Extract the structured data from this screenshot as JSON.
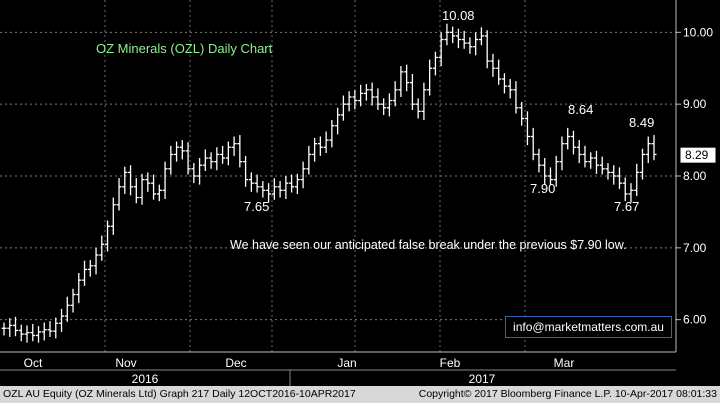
{
  "chart_data": {
    "type": "ohlc",
    "title": "OZ Minerals (OZL) Daily Chart",
    "annotation": "We have seen our anticipated false break under the previous $7.90 low.",
    "ylim": [
      5.55,
      10.45
    ],
    "yticks": [
      6.0,
      7.0,
      8.0,
      9.0,
      10.0
    ],
    "ytick_labels": [
      "6.00",
      "7.00",
      "8.00",
      "9.00",
      "10.00"
    ],
    "grid": true,
    "x_month_labels": [
      "Oct",
      "Nov",
      "Dec",
      "Jan",
      "Feb",
      "Mar"
    ],
    "x_year_labels": [
      "2016",
      "2017"
    ],
    "last_price": "8.29",
    "price_labels": [
      "10.08",
      "8.64",
      "8.49",
      "7.65",
      "7.90",
      "7.67"
    ],
    "close": [
      5.88,
      5.92,
      5.85,
      5.8,
      5.82,
      5.78,
      5.83,
      5.86,
      5.84,
      5.95,
      6.05,
      6.2,
      6.35,
      6.55,
      6.7,
      6.75,
      6.9,
      7.05,
      7.3,
      7.6,
      7.85,
      8.05,
      7.85,
      7.7,
      7.95,
      7.9,
      7.75,
      7.8,
      8.1,
      8.3,
      8.4,
      8.35,
      8.1,
      8.0,
      8.15,
      8.25,
      8.2,
      8.3,
      8.25,
      8.4,
      8.45,
      8.2,
      7.95,
      7.9,
      7.85,
      7.8,
      7.75,
      7.85,
      7.8,
      7.9,
      7.85,
      7.95,
      8.1,
      8.3,
      8.45,
      8.4,
      8.5,
      8.7,
      8.85,
      9.0,
      9.1,
      9.05,
      9.15,
      9.2,
      9.1,
      9.0,
      8.95,
      9.05,
      9.2,
      9.45,
      9.3,
      9.0,
      8.9,
      9.2,
      9.5,
      9.65,
      9.9,
      10.0,
      9.95,
      9.9,
      9.85,
      9.8,
      9.9,
      9.95,
      9.6,
      9.5,
      9.35,
      9.25,
      9.2,
      8.95,
      8.8,
      8.55,
      8.3,
      8.15,
      8.0,
      7.95,
      8.2,
      8.45,
      8.55,
      8.4,
      8.3,
      8.2,
      8.25,
      8.15,
      8.1,
      8.05,
      8.0,
      7.9,
      7.75,
      7.8,
      8.05,
      8.3,
      8.45,
      8.3
    ]
  },
  "footer": {
    "left": "OZL AU Equity (OZ Minerals Ltd) Graph 217  Daily 12OCT2016-10APR2017",
    "right": "Copyright© 2017 Bloomberg Finance L.P.   10-Apr-2017 08:01:33"
  },
  "contact": "info@marketmatters.com.au"
}
